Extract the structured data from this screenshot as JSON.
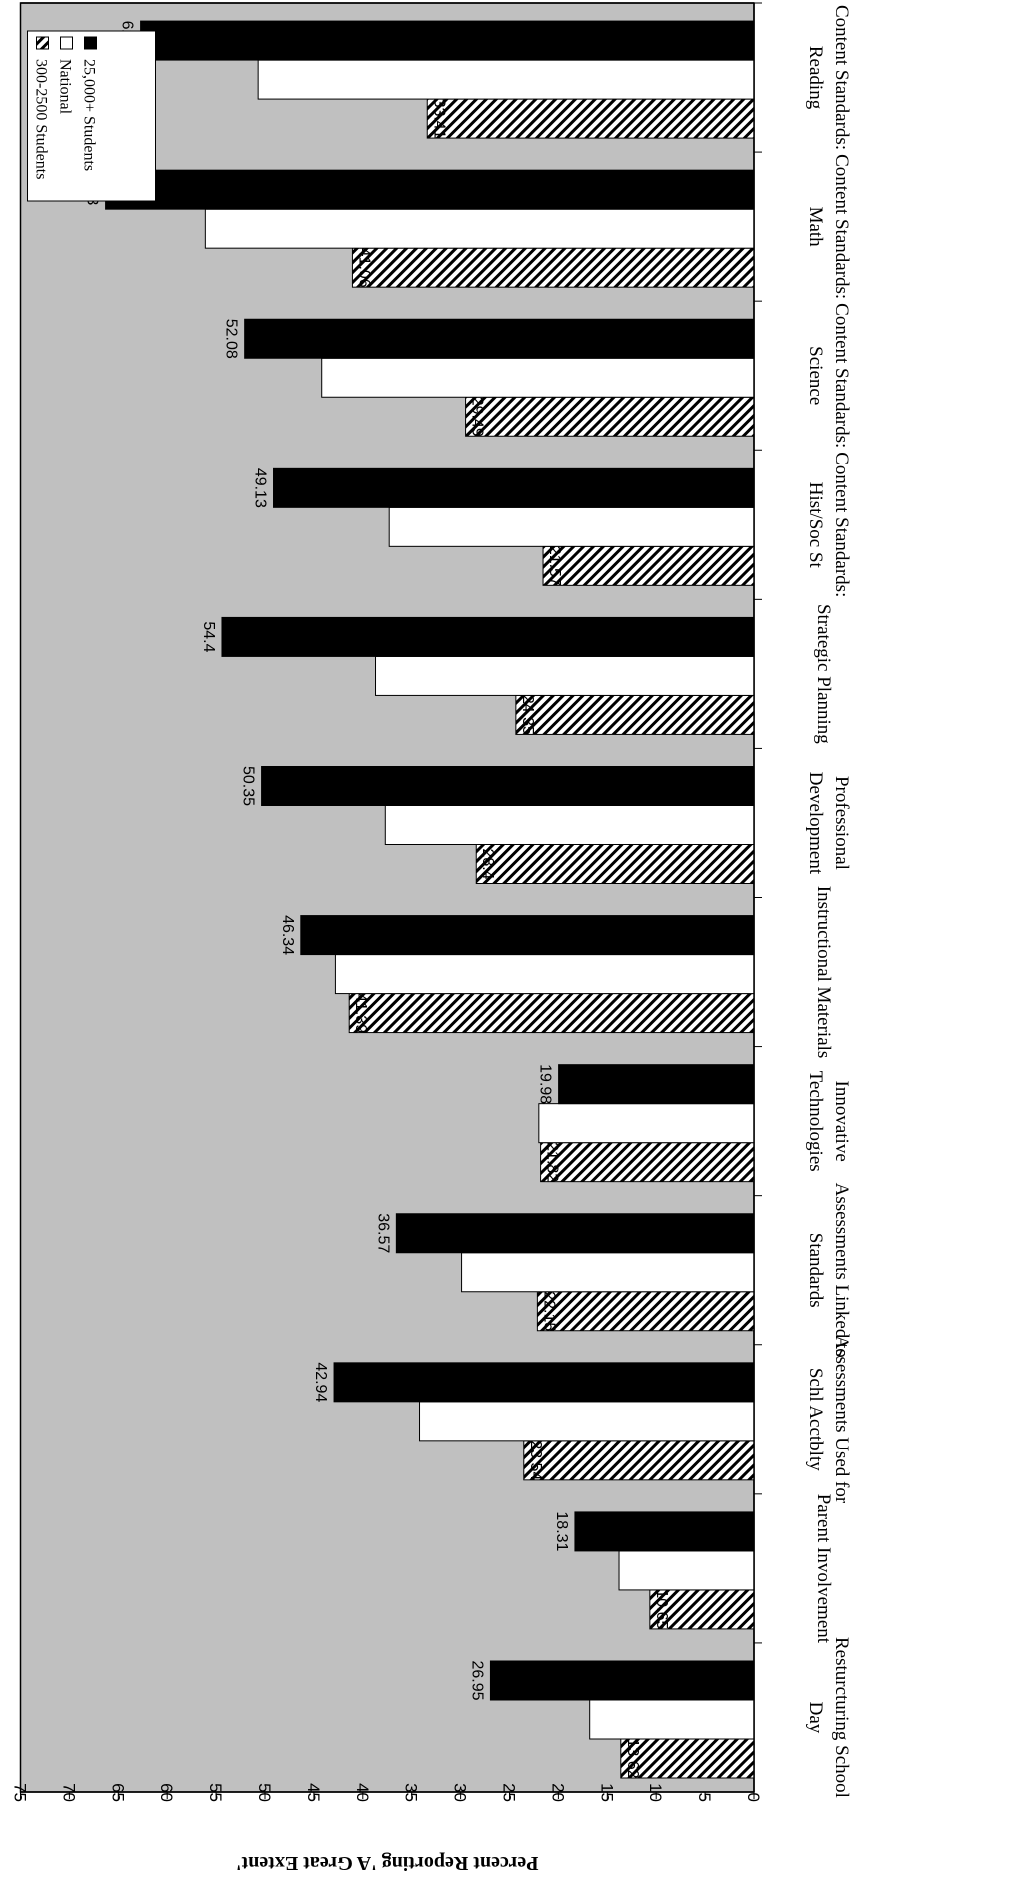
{
  "chart_data": {
    "type": "bar",
    "orientation": "horizontal, page rotated 180 degrees",
    "ylabel": "Percent Reporting 'A Great Extent'",
    "ylim": [
      0,
      75
    ],
    "ticks": [
      0,
      5,
      10,
      15,
      20,
      25,
      30,
      35,
      40,
      45,
      50,
      55,
      60,
      65,
      70,
      75
    ],
    "grid": false,
    "legend_placement": "top-left",
    "categories": [
      [
        "Content Standards:",
        "Reading"
      ],
      [
        "Content Standards:",
        "Math"
      ],
      [
        "Content Standards:",
        "Science"
      ],
      [
        "Content Standards:",
        "Hist/Soc St"
      ],
      [
        "Strategic Planning"
      ],
      [
        "Professional",
        "Development"
      ],
      [
        "Instructional Materials"
      ],
      [
        "Innovative",
        "Technologies"
      ],
      [
        "Assessments Linked to",
        "Standards"
      ],
      [
        "Assessments Used for",
        "Schl Acctblty"
      ],
      [
        "Parent Involvement"
      ],
      [
        "Resturcturing School",
        "Day"
      ]
    ],
    "series": [
      {
        "name": "300-2500 Students",
        "style": "hatched",
        "values": [
          33.41,
          41.06,
          29.49,
          21.57,
          24.35,
          28.4,
          41.39,
          21.82,
          22.15,
          23.54,
          10.65,
          13.62
        ]
      },
      {
        "name": "National",
        "style": "white",
        "values": [
          50.7,
          56.1,
          44.2,
          37.3,
          38.7,
          37.7,
          42.8,
          22.0,
          29.9,
          34.2,
          13.8,
          16.8
        ]
      },
      {
        "name": "25,000+ Students",
        "style": "black",
        "values": [
          62.72,
          66.3,
          52.08,
          49.13,
          54.4,
          50.35,
          46.34,
          19.98,
          36.57,
          42.94,
          18.31,
          26.95
        ]
      }
    ],
    "data_labels": {
      "300-2500 Students": [
        "33.41",
        "41.06",
        "29.49",
        "21.57",
        "24.35",
        "28.4",
        "41.39",
        "21.82",
        "22.15",
        "23.54",
        "10.65",
        "13.62"
      ],
      "25,000+ Students": [
        "62.72",
        "66.3",
        "52.08",
        "49.13",
        "54.4",
        "50.35",
        "46.34",
        "19.98",
        "36.57",
        "42.94",
        "18.31",
        "26.95"
      ]
    }
  },
  "colors": {
    "plot_bg": "#c0c0c0",
    "hatched_fill": "#ffffff",
    "hatched_stroke": "#000000",
    "white_fill": "#ffffff",
    "black_fill": "#000000"
  }
}
